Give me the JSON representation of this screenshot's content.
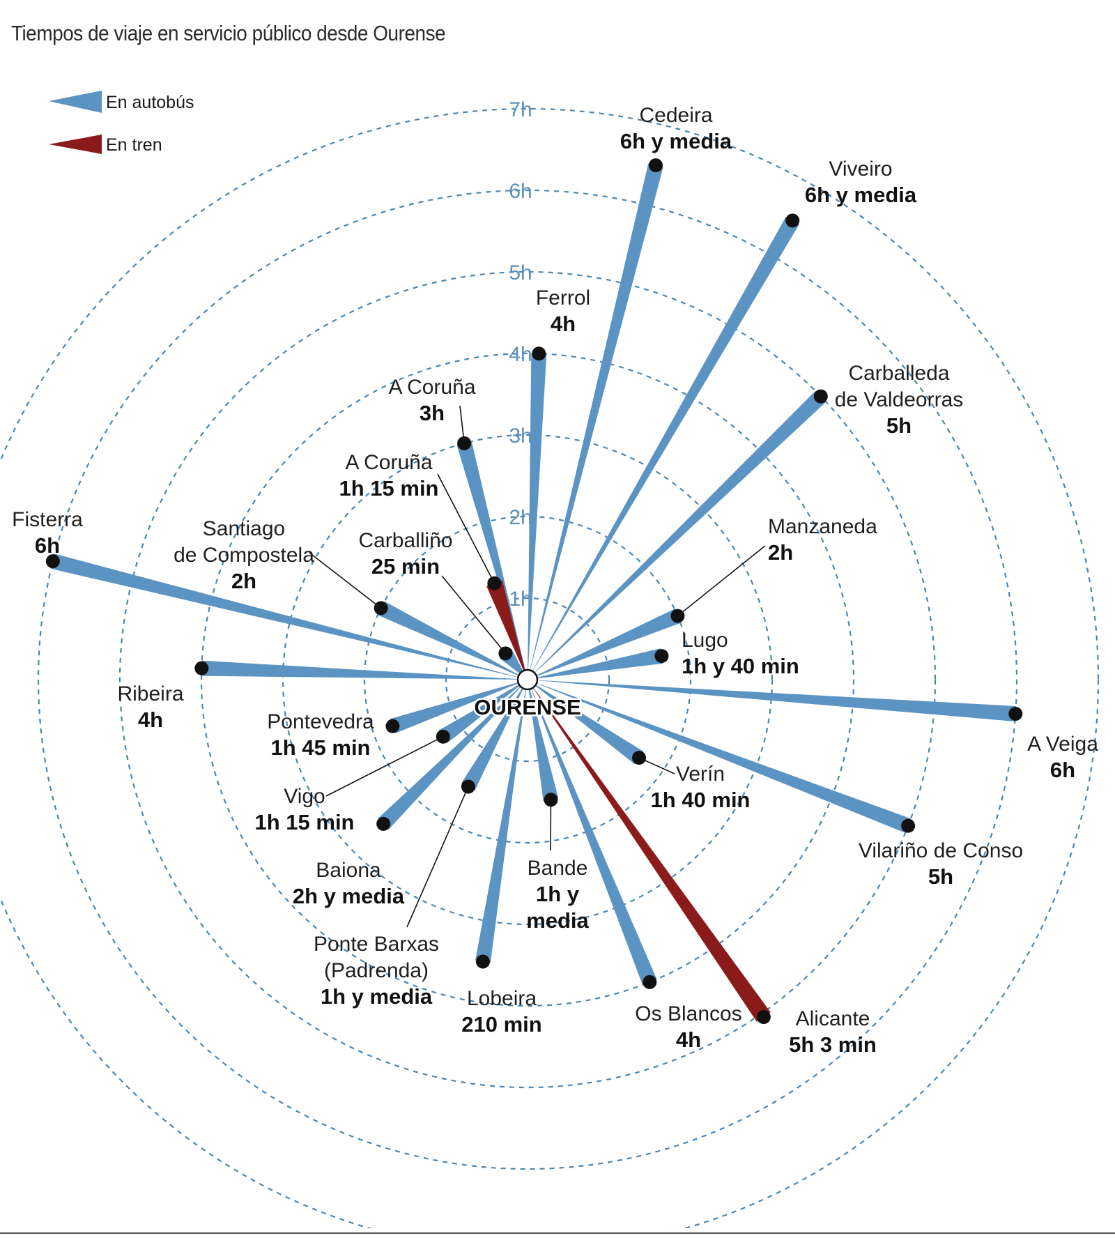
{
  "title": "Tiempos de viaje en servicio público desde Ourense",
  "center_label": "OURENSE",
  "colors": {
    "bus": "#5b93c2",
    "train": "#8b1a1a",
    "ring": "#4a86b4"
  },
  "legend": [
    {
      "key": "bus",
      "label": "En autobús"
    },
    {
      "key": "train",
      "label": "En tren"
    }
  ],
  "chart_data": {
    "type": "radial-bar",
    "unit": "h",
    "rings": [
      1,
      2,
      3,
      4,
      5,
      6,
      7
    ],
    "ring_labels": [
      "1h",
      "2h",
      "3h",
      "4h",
      "5h",
      "6h",
      "7h"
    ],
    "series": [
      {
        "name": "En autobús",
        "key": "bus"
      },
      {
        "name": "En tren",
        "key": "train"
      }
    ],
    "points": [
      {
        "name": "Cedeira",
        "time_label": "6h y media",
        "mode": "bus",
        "hours": 6.5,
        "bearing_deg": 14
      },
      {
        "name": "Viveiro",
        "time_label": "6h y media",
        "mode": "bus",
        "hours": 6.5,
        "bearing_deg": 30
      },
      {
        "name": "Ferrol",
        "time_label": "4h",
        "mode": "bus",
        "hours": 4,
        "bearing_deg": 2
      },
      {
        "name": "Carballeda de Valdeorras",
        "time_label": "5h",
        "mode": "bus",
        "hours": 5,
        "bearing_deg": 46
      },
      {
        "name": "A Coruña",
        "time_label": "3h",
        "mode": "bus",
        "hours": 3,
        "bearing_deg": -15
      },
      {
        "name": "A Coruña",
        "time_label": "1h 15 min",
        "mode": "train",
        "hours": 1.25,
        "bearing_deg": -19
      },
      {
        "name": "Manzaneda",
        "time_label": "2h",
        "mode": "bus",
        "hours": 2,
        "bearing_deg": 67
      },
      {
        "name": "Lugo",
        "time_label": "1h y 40 min",
        "mode": "bus",
        "hours": 1.67,
        "bearing_deg": 80
      },
      {
        "name": "Carballiño",
        "time_label": "25 min",
        "mode": "bus",
        "hours": 0.42,
        "bearing_deg": -40
      },
      {
        "name": "Santiago de Compostela",
        "time_label": "2h",
        "mode": "bus",
        "hours": 2,
        "bearing_deg": -64
      },
      {
        "name": "Fisterra",
        "time_label": "6h",
        "mode": "bus",
        "hours": 6,
        "bearing_deg": -76
      },
      {
        "name": "Ribeira",
        "time_label": "4h",
        "mode": "bus",
        "hours": 4,
        "bearing_deg": -88
      },
      {
        "name": "A Veiga",
        "time_label": "6h",
        "mode": "bus",
        "hours": 6,
        "bearing_deg": 94
      },
      {
        "name": "Pontevedra",
        "time_label": "1h 45 min",
        "mode": "bus",
        "hours": 1.75,
        "bearing_deg": -109
      },
      {
        "name": "Vigo",
        "time_label": "1h 15 min",
        "mode": "bus",
        "hours": 1.25,
        "bearing_deg": -124
      },
      {
        "name": "Baiona",
        "time_label": "2h y media",
        "mode": "bus",
        "hours": 2.5,
        "bearing_deg": -135
      },
      {
        "name": "Ponte Barxas (Padrenda)",
        "time_label": "1h y media",
        "mode": "bus",
        "hours": 1.5,
        "bearing_deg": -151
      },
      {
        "name": "Bande",
        "time_label": "1h y media",
        "mode": "bus",
        "hours": 1.5,
        "bearing_deg": 169
      },
      {
        "name": "Lobeira",
        "time_label": "210 min",
        "mode": "bus",
        "hours": 3.5,
        "bearing_deg": -171
      },
      {
        "name": "Os Blancos",
        "time_label": "4h",
        "mode": "bus",
        "hours": 4,
        "bearing_deg": 158
      },
      {
        "name": "Alicante",
        "time_label": "5h 3 min",
        "mode": "train",
        "hours": 5.05,
        "bearing_deg": 145
      },
      {
        "name": "Verín",
        "time_label": "1h 40 min",
        "mode": "bus",
        "hours": 1.67,
        "bearing_deg": 125
      },
      {
        "name": "Vilariño de Conso",
        "time_label": "5h",
        "mode": "bus",
        "hours": 5,
        "bearing_deg": 111
      }
    ]
  }
}
